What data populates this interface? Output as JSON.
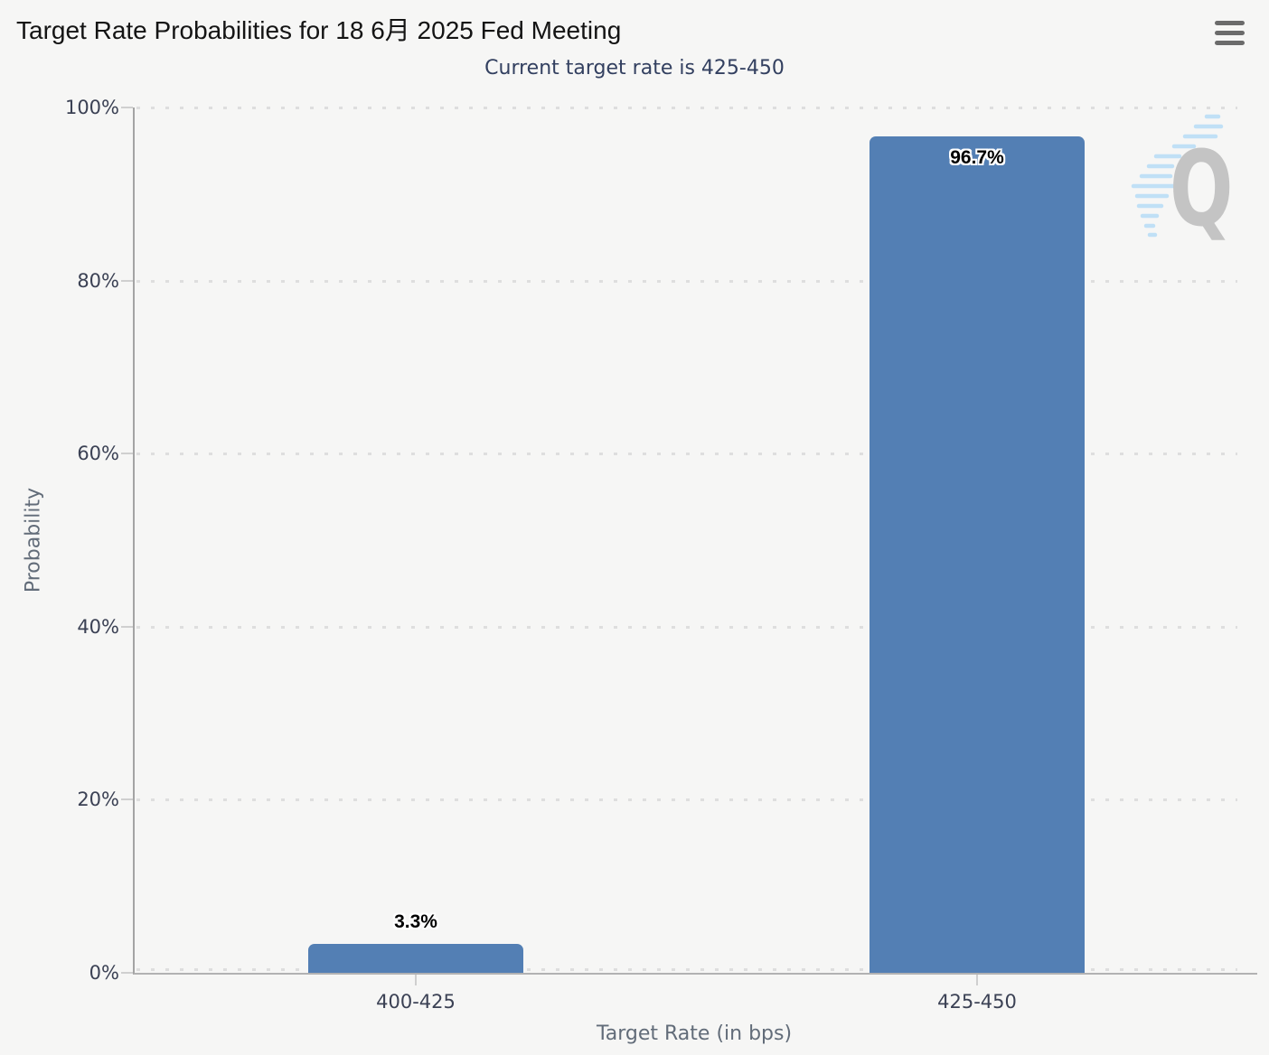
{
  "chart_data": {
    "type": "bar",
    "title": "Target Rate Probabilities for 18 6月 2025 Fed Meeting",
    "subtitle": "Current target rate is 425-450",
    "categories": [
      "400-425",
      "425-450"
    ],
    "values": [
      3.3,
      96.7
    ],
    "data_labels": [
      "3.3%",
      "96.7%"
    ],
    "xlabel": "Target Rate (in bps)",
    "ylabel": "Probability",
    "ylim": [
      0,
      100
    ],
    "ytick_values": [
      0,
      20,
      40,
      60,
      80,
      100
    ],
    "ytick_labels": [
      "0%",
      "20%",
      "40%",
      "60%",
      "80%",
      "100%"
    ],
    "grid": "horizontal-dotted",
    "legend": "none",
    "bar_color": "#537fb4"
  },
  "watermark": {
    "letter": "Q"
  },
  "colors": {
    "background": "#f6f6f5",
    "bar": "#537fb4",
    "title_text": "#141414",
    "subtitle_text": "#334060",
    "tick_label_text": "#3b4154",
    "axis_title_text": "#626c79",
    "gridline": "#dedede",
    "axis_line": "#a4a4a4",
    "menu_icon": "#6b6b6b",
    "watermark_gray": "#c4c4c4",
    "watermark_blue": "#b7ddf7"
  }
}
